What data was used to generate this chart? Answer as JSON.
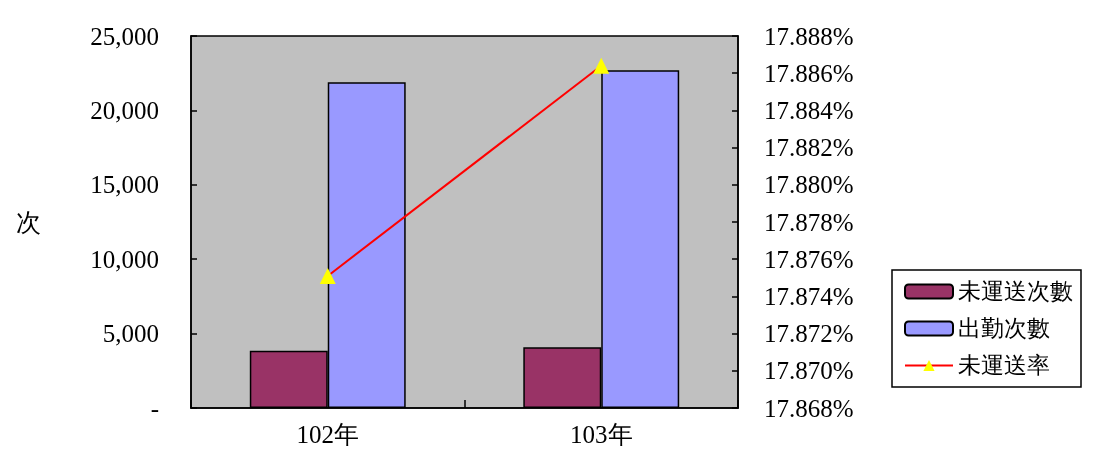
{
  "chart_data": {
    "type": "bar",
    "ylabel": "次",
    "categories": [
      "102年",
      "103年"
    ],
    "series": [
      {
        "name": "未運送次數",
        "color": "#993366",
        "values": [
          3840,
          4080
        ]
      },
      {
        "name": "出勤次數",
        "color": "#9999ff",
        "values": [
          21900,
          22700
        ]
      },
      {
        "name": "未運送率",
        "type": "line",
        "axis": "y2",
        "color": "#ff0000",
        "marker": "triangle",
        "values": [
          17.8751,
          17.8864
        ]
      }
    ],
    "ylim": [
      0,
      25000
    ],
    "yticks": [
      {
        "value": 0,
        "label": "-"
      },
      {
        "value": 5000,
        "label": "5,000"
      },
      {
        "value": 10000,
        "label": "10,000"
      },
      {
        "value": 15000,
        "label": "15,000"
      },
      {
        "value": 20000,
        "label": "20,000"
      },
      {
        "value": 25000,
        "label": "25,000"
      }
    ],
    "y2lim": [
      17.868,
      17.888
    ],
    "y2ticks": [
      {
        "value": 17.868,
        "label": "17.868%"
      },
      {
        "value": 17.87,
        "label": "17.870%"
      },
      {
        "value": 17.872,
        "label": "17.872%"
      },
      {
        "value": 17.874,
        "label": "17.874%"
      },
      {
        "value": 17.876,
        "label": "17.876%"
      },
      {
        "value": 17.878,
        "label": "17.878%"
      },
      {
        "value": 17.88,
        "label": "17.880%"
      },
      {
        "value": 17.882,
        "label": "17.882%"
      },
      {
        "value": 17.884,
        "label": "17.884%"
      },
      {
        "value": 17.886,
        "label": "17.886%"
      },
      {
        "value": 17.888,
        "label": "17.888%"
      }
    ],
    "grid": false,
    "legend": "right"
  }
}
